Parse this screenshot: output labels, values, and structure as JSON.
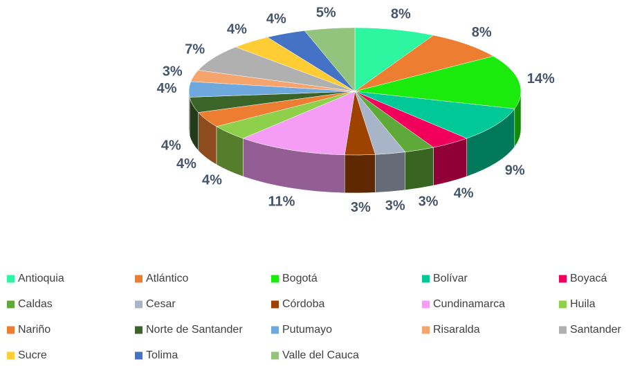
{
  "chart_data": {
    "type": "pie",
    "categories": [
      "Antioquia",
      "Atlántico",
      "Bogotá",
      "Bolívar",
      "Boyacá",
      "Caldas",
      "Cesar",
      "Córdoba",
      "Cundinamarca",
      "Huila",
      "Nariño",
      "Norte de Santander",
      "Putumayo",
      "Risaralda",
      "Santander",
      "Sucre",
      "Tolima",
      "Valle del Cauca"
    ],
    "values": [
      8,
      8,
      14,
      9,
      4,
      3,
      3,
      3,
      11,
      4,
      4,
      4,
      4,
      3,
      7,
      4,
      4,
      5
    ],
    "value_labels": [
      "8%",
      "8%",
      "14%",
      "9%",
      "4%",
      "3%",
      "3%",
      "3%",
      "11%",
      "4%",
      "4%",
      "4%",
      "4%",
      "3%",
      "7%",
      "4%",
      "4%",
      "5%"
    ],
    "colors": [
      "#2EF5A0",
      "#ED7D31",
      "#1AEA0C",
      "#00C896",
      "#F0005A",
      "#5FA83A",
      "#A8B4C8",
      "#9E4200",
      "#F59CF5",
      "#8ED04A",
      "#ED7D31",
      "#3A6428",
      "#6FA8DC",
      "#F4A46C",
      "#B0B0B0",
      "#FFCC33",
      "#4472C4",
      "#93C47D"
    ],
    "legend": "bottom"
  }
}
